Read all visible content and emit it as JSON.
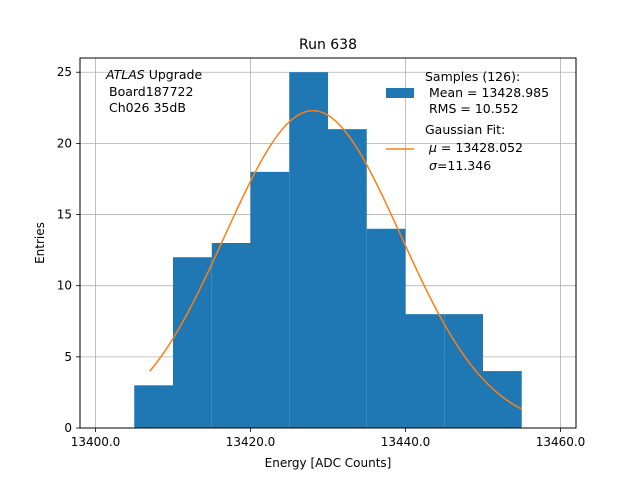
{
  "chart_data": {
    "type": "bar",
    "title": "Run 638",
    "xlabel": "Energy [ADC Counts]",
    "ylabel": "Entries",
    "xlim": [
      13398.0,
      13462.0
    ],
    "ylim": [
      0,
      26
    ],
    "xticks": [
      13400.0,
      13420.0,
      13440.0,
      13460.0
    ],
    "xtick_labels": [
      "13400.0",
      "13420.0",
      "13440.0",
      "13460.0"
    ],
    "yticks": [
      0,
      5,
      10,
      15,
      20,
      25
    ],
    "ytick_labels": [
      "0",
      "5",
      "10",
      "15",
      "20",
      "25"
    ],
    "grid": true,
    "legend_position": "upper-right",
    "annotation": {
      "line1_italic": "ATLAS",
      "line1_rest": " Upgrade",
      "line2": "Board187722",
      "line3": "Ch026 35dB"
    },
    "histogram": {
      "color": "#1f77b4",
      "bin_edges": [
        13405,
        13410,
        13415,
        13420,
        13425,
        13430,
        13435,
        13440,
        13445,
        13450,
        13455
      ],
      "counts": [
        3,
        12,
        13,
        18,
        25,
        21,
        14,
        8,
        8,
        4
      ],
      "legend_title": "Samples (126):",
      "legend_line2": "Mean = 13428.985",
      "legend_line3": "RMS = 10.552"
    },
    "fit": {
      "color": "#ff7f0e",
      "mu": 13428.052,
      "sigma": 11.346,
      "amplitude": 22.3,
      "x_range": [
        13407,
        13455
      ],
      "legend_title": "Gaussian Fit:",
      "legend_line2_symbol": "μ",
      "legend_line2_rest": " = 13428.052",
      "legend_line3_symbol": "σ",
      "legend_line3_rest": "=11.346"
    }
  }
}
